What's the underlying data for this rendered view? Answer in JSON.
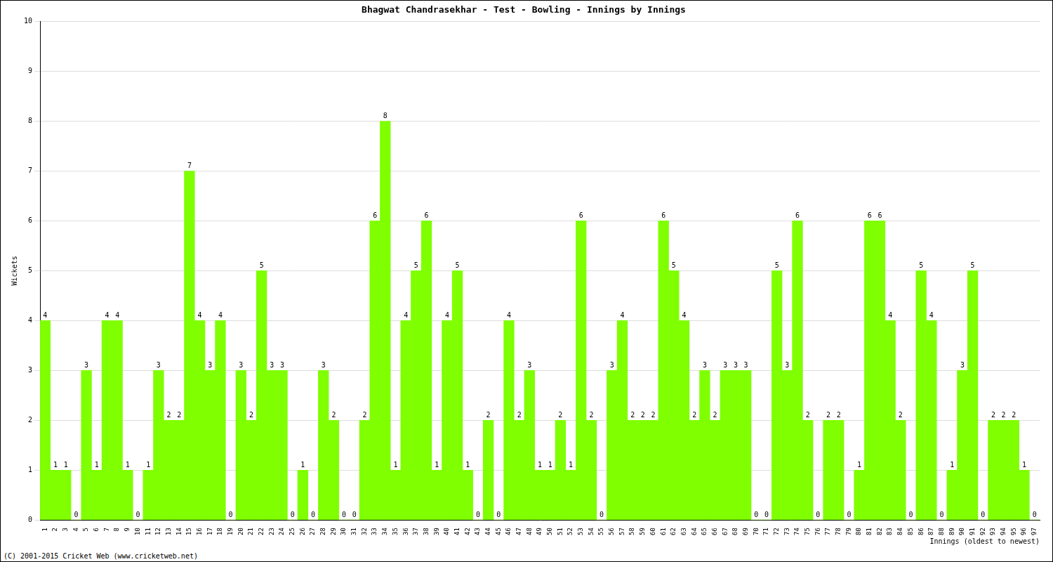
{
  "chart_data": {
    "type": "bar",
    "title": "Bhagwat Chandrasekhar - Test - Bowling - Innings by Innings",
    "x_label": "Innings (oldest to newest)",
    "y_label": "Wickets",
    "annotations": [
      "(C) 2001-2015 Cricket Web (www.cricketweb.net)"
    ],
    "categories": [
      "1",
      "2",
      "3",
      "4",
      "5",
      "6",
      "7",
      "8",
      "9",
      "10",
      "11",
      "12",
      "13",
      "14",
      "15",
      "16",
      "17",
      "18",
      "19",
      "20",
      "21",
      "22",
      "23",
      "24",
      "25",
      "26",
      "27",
      "28",
      "29",
      "30",
      "31",
      "32",
      "33",
      "34",
      "35",
      "36",
      "37",
      "38",
      "39",
      "40",
      "41",
      "42",
      "43",
      "44",
      "45",
      "46",
      "47",
      "48",
      "49",
      "50",
      "51",
      "52",
      "53",
      "54",
      "55",
      "56",
      "57",
      "58",
      "59",
      "60",
      "61",
      "62",
      "63",
      "64",
      "65",
      "66",
      "67",
      "68",
      "69",
      "70",
      "71",
      "72",
      "73",
      "74",
      "75",
      "76",
      "77",
      "78",
      "79",
      "80",
      "81",
      "82",
      "83",
      "84",
      "85",
      "86",
      "87",
      "88",
      "89",
      "90",
      "91",
      "92",
      "93",
      "94",
      "95",
      "96",
      "97"
    ],
    "values": [
      4,
      1,
      1,
      0,
      3,
      1,
      4,
      4,
      1,
      0,
      1,
      3,
      2,
      2,
      7,
      4,
      3,
      4,
      0,
      3,
      2,
      5,
      3,
      3,
      0,
      1,
      0,
      3,
      2,
      0,
      0,
      2,
      6,
      8,
      1,
      4,
      5,
      6,
      1,
      4,
      5,
      1,
      0,
      2,
      0,
      4,
      2,
      3,
      1,
      1,
      2,
      1,
      6,
      2,
      0,
      3,
      4,
      2,
      2,
      2,
      6,
      5,
      4,
      2,
      3,
      2,
      3,
      3,
      3,
      0,
      0,
      5,
      3,
      6,
      2,
      0,
      2,
      2,
      0,
      1,
      6,
      6,
      4,
      2,
      0,
      5,
      4,
      0,
      1,
      3,
      5,
      0,
      2,
      2,
      2,
      1,
      0
    ],
    "color": "#7fff00",
    "ylim": [
      0,
      10
    ],
    "yticks": [
      0,
      1,
      2,
      3,
      4,
      5,
      6,
      7,
      8,
      9,
      10
    ],
    "grid": true,
    "data_labels": true
  }
}
